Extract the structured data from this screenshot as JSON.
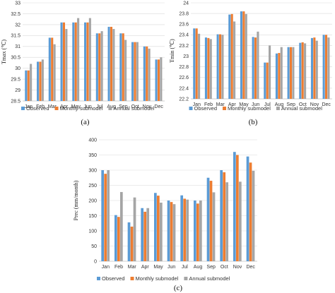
{
  "colors": {
    "observed": "#5b9bd5",
    "monthly": "#ed7d31",
    "annual": "#a5a5a5"
  },
  "chart_data": [
    {
      "type": "bar",
      "caption": "(a)",
      "ylabel": "Tmax (℃)",
      "ylim": [
        28.5,
        33
      ],
      "yticks": [
        "28.5",
        "29",
        "29.5",
        "30",
        "30.5",
        "31",
        "31.5",
        "32",
        "32.5",
        "33"
      ],
      "grid": true,
      "legend": "bottom",
      "categories": [
        "Jan",
        "Feb",
        "Mar",
        "Apr",
        "May",
        "Jun",
        "Jul",
        "Aug",
        "Sep",
        "Oct",
        "Nov",
        "Dec"
      ],
      "series": [
        {
          "name": "Observed",
          "values": [
            29.9,
            30.3,
            31.4,
            32.1,
            32.1,
            32.1,
            31.6,
            31.9,
            31.6,
            31.2,
            31.0,
            30.4
          ]
        },
        {
          "name": "Monthly submodel",
          "values": [
            29.9,
            30.3,
            31.4,
            32.1,
            32.1,
            32.1,
            31.6,
            31.9,
            31.6,
            31.2,
            31.0,
            30.4
          ]
        },
        {
          "name": "Annual submodel",
          "values": [
            30.2,
            30.4,
            31.1,
            31.8,
            32.3,
            32.3,
            31.7,
            31.8,
            31.3,
            31.2,
            30.9,
            30.5
          ]
        }
      ]
    },
    {
      "type": "bar",
      "caption": "(b)",
      "ylabel": "Tmin (℃)",
      "ylim": [
        22.2,
        24
      ],
      "yticks": [
        "22.2",
        "22.4",
        "22.6",
        "22.8",
        "23",
        "23.2",
        "23.4",
        "23.6",
        "23.8",
        "24"
      ],
      "grid": true,
      "legend": "bottom",
      "categories": [
        "Jan",
        "Feb",
        "Mar",
        "Apr",
        "May",
        "Jun",
        "Jul",
        "Aug",
        "Sep",
        "Oct",
        "Nov",
        "Dec"
      ],
      "series": [
        {
          "name": "Observed",
          "values": [
            23.52,
            23.35,
            23.41,
            23.78,
            23.84,
            23.36,
            22.88,
            23.05,
            23.17,
            23.25,
            23.34,
            23.4
          ]
        },
        {
          "name": "Monthly submodel",
          "values": [
            23.52,
            23.34,
            23.41,
            23.79,
            23.84,
            23.35,
            22.88,
            23.06,
            23.17,
            23.26,
            23.35,
            23.4
          ]
        },
        {
          "name": "Annual submodel",
          "values": [
            23.42,
            23.32,
            23.4,
            23.65,
            23.79,
            23.46,
            23.2,
            23.17,
            23.17,
            23.24,
            23.29,
            23.35
          ]
        }
      ]
    },
    {
      "type": "bar",
      "caption": "(c)",
      "ylabel": "Prec (mm/month)",
      "ylim": [
        0,
        400
      ],
      "yticks": [
        "0",
        "50",
        "100",
        "150",
        "200",
        "250",
        "300",
        "350",
        "400"
      ],
      "grid": true,
      "legend": "bottom",
      "categories": [
        "Jan",
        "Feb",
        "Mar",
        "Apr",
        "May",
        "Jun",
        "Jul",
        "Aug",
        "Sep",
        "Oct",
        "Nov",
        "Dec"
      ],
      "series": [
        {
          "name": "Observed",
          "values": [
            300,
            152,
            128,
            175,
            225,
            200,
            217,
            200,
            275,
            300,
            360,
            345
          ]
        },
        {
          "name": "Monthly submodel",
          "values": [
            288,
            146,
            114,
            163,
            216,
            195,
            206,
            190,
            265,
            293,
            350,
            325
          ]
        },
        {
          "name": "Annual submodel",
          "values": [
            300,
            228,
            210,
            175,
            193,
            188,
            203,
            200,
            227,
            260,
            262,
            298
          ]
        }
      ]
    }
  ]
}
